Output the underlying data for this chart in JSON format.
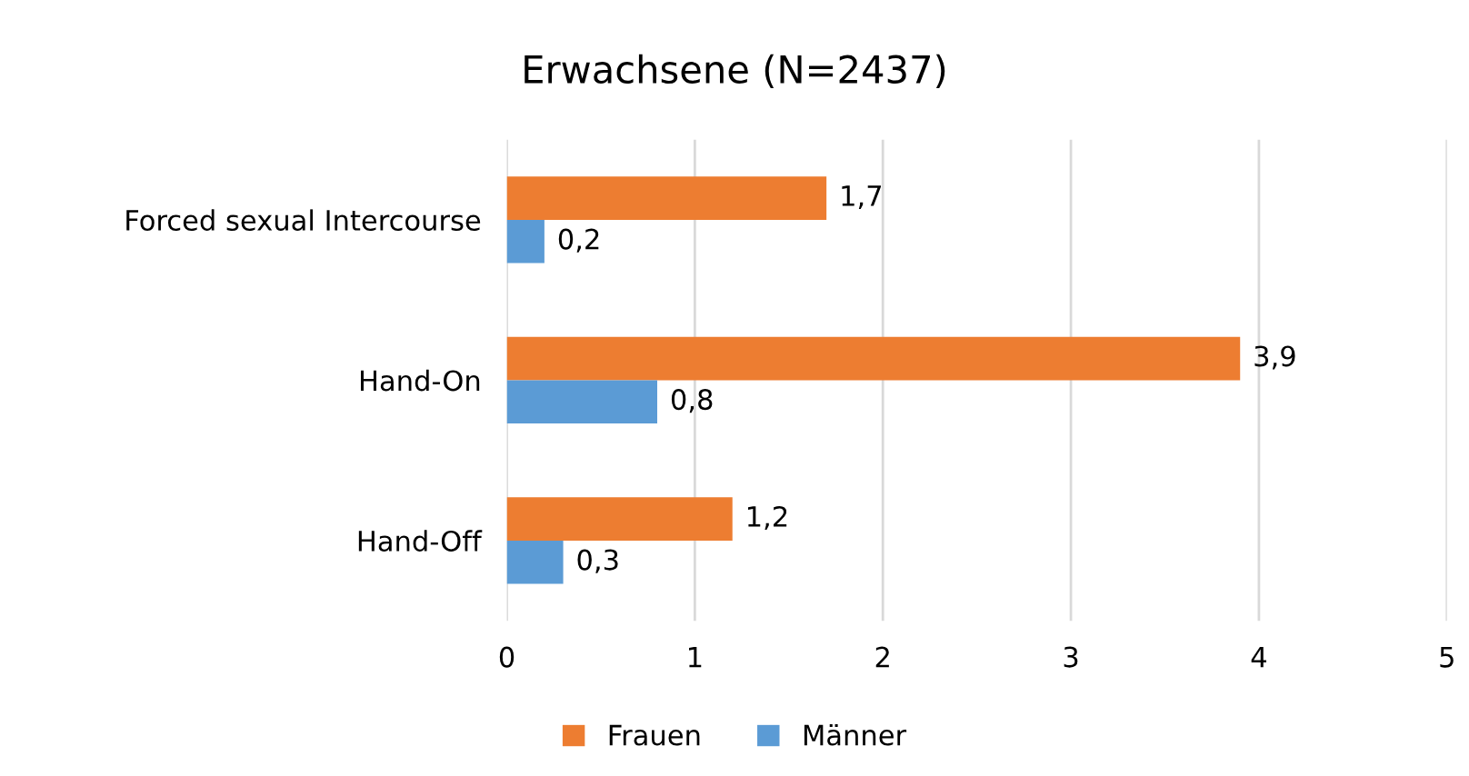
{
  "chart_data": {
    "type": "bar",
    "orientation": "horizontal",
    "title": "Erwachsene (N=2437)",
    "categories": [
      "Forced sexual Intercourse",
      "Hand-On",
      "Hand-Off"
    ],
    "series": [
      {
        "name": "Frauen",
        "color": "#ed7d31",
        "values": [
          1.7,
          3.9,
          1.2
        ],
        "value_labels": [
          "1,7",
          "3,9",
          "1,2"
        ]
      },
      {
        "name": "Männer",
        "color": "#5b9bd5",
        "values": [
          0.2,
          0.8,
          0.3
        ],
        "value_labels": [
          "0,2",
          "0,8",
          "0,3"
        ]
      }
    ],
    "xlim": [
      0,
      5
    ],
    "xticks": [
      0,
      1,
      2,
      3,
      4,
      5
    ],
    "grid": "x",
    "legend": "bottom"
  }
}
